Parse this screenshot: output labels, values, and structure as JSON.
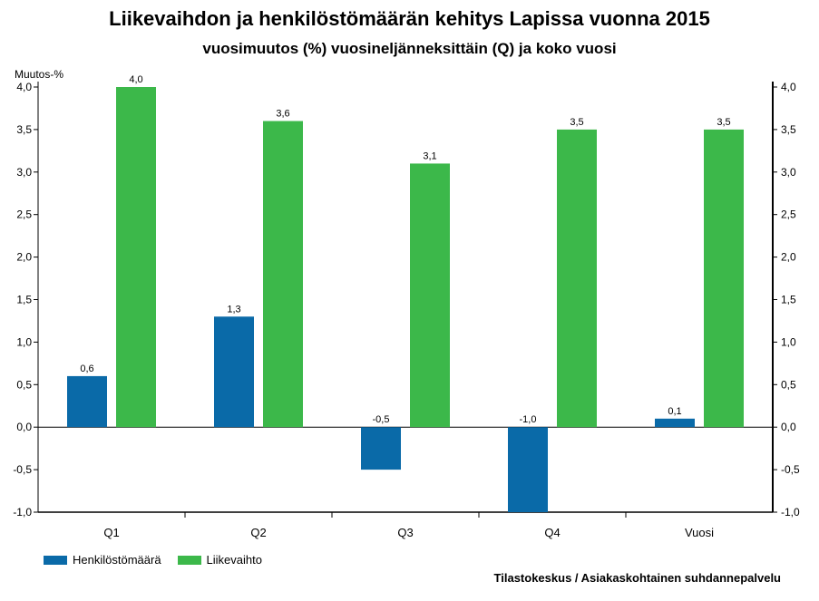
{
  "chart_data": {
    "type": "bar",
    "title": "Liikevaihdon ja henkilöstömäärän kehitys Lapissa vuonna 2015",
    "subtitle": "vuosimuutos (%) vuosineljänneksittäin (Q) ja koko vuosi",
    "ylabel": "Muutos-%",
    "xlabel": "",
    "categories": [
      "Q1",
      "Q2",
      "Q3",
      "Q4",
      "Vuosi"
    ],
    "series": [
      {
        "name": "Henkilöstömäärä",
        "color": "#0a6aa8",
        "values": [
          0.6,
          1.3,
          -0.5,
          -1.0,
          0.1
        ]
      },
      {
        "name": "Liikevaihto",
        "color": "#3cb84a",
        "values": [
          4.0,
          3.6,
          3.1,
          3.5,
          3.5
        ]
      }
    ],
    "ylim": [
      -1.0,
      4.0
    ],
    "yticks": [
      "-1,0",
      "-0,5",
      "0,0",
      "0,5",
      "1,0",
      "1,5",
      "2,0",
      "2,5",
      "3,0",
      "3,5",
      "4,0"
    ],
    "data_labels": [
      [
        "0,6",
        "1,3",
        "-0,5",
        "-1,0",
        "0,1"
      ],
      [
        "4,0",
        "3,6",
        "3,1",
        "3,5",
        "3,5"
      ]
    ],
    "grid": false,
    "secondary_axis": true,
    "legend_position": "bottom-left",
    "source": "Tilastokeskus / Asiakaskohtainen suhdannepalvelu"
  }
}
